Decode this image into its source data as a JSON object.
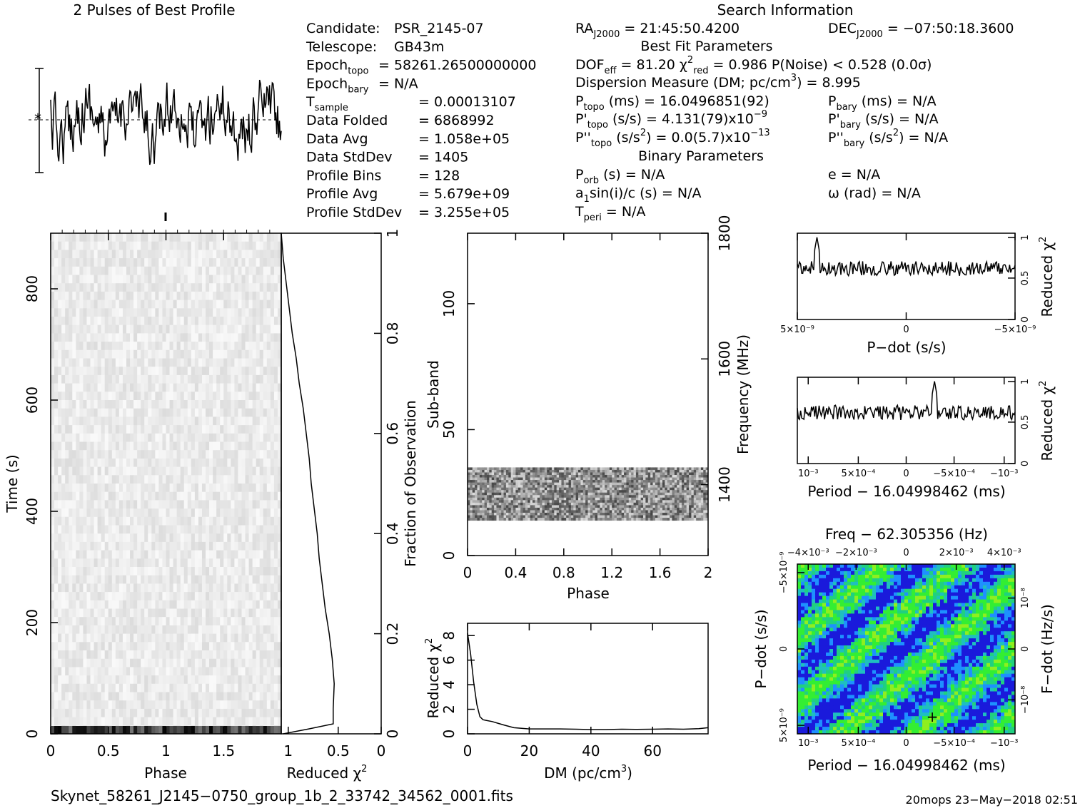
{
  "header": {
    "profile_title": "2 Pulses of Best Profile",
    "search_title": "Search Information",
    "best_fit_title": "Best Fit Parameters",
    "binary_title": "Binary Parameters"
  },
  "info_left": [
    {
      "name": "Candidate:",
      "sub": "",
      "value": "PSR_2145-07"
    },
    {
      "name": "Telescope:",
      "sub": "",
      "value": "GB43m"
    },
    {
      "name": "Epoch",
      "sub": "topo",
      "value": "= 58261.26500000000"
    },
    {
      "name": "Epoch",
      "sub": "bary",
      "value": "= N/A"
    },
    {
      "name": "T",
      "sub": "sample",
      "value": "=   0.00013107"
    },
    {
      "name": "Data Folded",
      "sub": "",
      "value": "=   6868992"
    },
    {
      "name": "Data Avg",
      "sub": "",
      "value": "=   1.058e+05"
    },
    {
      "name": "Data StdDev",
      "sub": "",
      "value": "=   1405"
    },
    {
      "name": "Profile Bins",
      "sub": "",
      "value": "=   128"
    },
    {
      "name": "Profile Avg",
      "sub": "",
      "value": "=   5.679e+09"
    },
    {
      "name": "Profile StdDev",
      "sub": "",
      "value": "=   3.255e+05"
    }
  ],
  "info_right": {
    "ra": "= 21:45:50.4200",
    "ra_name": "RA",
    "ra_sub": "J2000",
    "dec": "= −07:50:18.3600",
    "dec_name": "DEC",
    "dec_sub": "J2000",
    "dof_line": "DOF",
    "dof_sub": "eff",
    "dof_value": "= 81.20",
    "chi_name": "χ",
    "chi_sup": "2",
    "chi_sub": "red",
    "chi_value": "= 0.986",
    "pnoise": "P(Noise) < 0.528  (0.0σ)",
    "dm_line": "Dispersion Measure (DM; pc/cm",
    "dm_sup": "3",
    "dm_value": ") = 8.995",
    "ptopo_name": "P",
    "ptopo_sub": "topo",
    "ptopo_value": "(ms) =  16.0496851(92)",
    "pbary_name": "P",
    "pbary_sub": "bary",
    "pbary_value": "(ms) = N/A",
    "pdtopo_name": "P'",
    "pdtopo_sub": "topo",
    "pdtopo_value": "(s/s) =  4.131(79)x10",
    "pdtopo_exp": "−9",
    "pdbary_name": "P'",
    "pdbary_sub": "bary",
    "pdbary_value": "(s/s) = N/A",
    "pddtopo_name": "P''",
    "pddtopo_sub": "topo",
    "pddtopo_value": "(s/s",
    "pddtopo_sup": "2",
    "pddtopo_value2": ") = 0.0(5.7)x10",
    "pddtopo_exp": "−13",
    "pddbary_name": "P''",
    "pddbary_sub": "bary",
    "pddbary_value": "(s/s",
    "pddbary_sup": "2",
    "pddbary_value2": ") = N/A",
    "porb_name": "P",
    "porb_sub": "orb",
    "porb_value": "(s) = N/A",
    "e_line": "e = N/A",
    "a1_name": "a",
    "a1_sub": "1",
    "a1_value": "sin(i)/c (s) = N/A",
    "omega_line": "ω (rad) = N/A",
    "tperi_name": "T",
    "tperi_sub": "peri",
    "tperi_value": "= N/A"
  },
  "footer": {
    "filename": "Skynet_58261_J2145−0750_group_1b_2_33742_34562_0001.fits",
    "stamp": "20mops 23−May−2018 02:51"
  },
  "chart_data": [
    {
      "id": "time-phase",
      "type": "heatmap",
      "xlabel": "Phase",
      "ylabel": "Time (s)",
      "xlim": [
        0,
        2
      ],
      "ylim": [
        0,
        900
      ],
      "x_ticks": [
        "0",
        "0.5",
        "1",
        "1.5"
      ],
      "y_ticks": [
        "0",
        "200",
        "400",
        "600",
        "800"
      ],
      "colormap": "grayscale"
    },
    {
      "id": "reduced-chi2-vs-time",
      "type": "line",
      "xlabel": "Reduced χ",
      "xlabel_sup": "2",
      "ylabel": "Fraction of Observation",
      "x_ticks": [
        "1",
        "0.5",
        "0"
      ],
      "y_ticks": [
        "0",
        "0.2",
        "0.4",
        "0.6",
        "0.8",
        "1"
      ],
      "xlim": [
        1,
        0
      ],
      "ylim": [
        0,
        1
      ],
      "points": [
        [
          0.98,
          0
        ],
        [
          0.72,
          0.01
        ],
        [
          0.48,
          0.02
        ],
        [
          0.48,
          0.05
        ],
        [
          0.47,
          0.1
        ],
        [
          0.49,
          0.15
        ],
        [
          0.52,
          0.2
        ],
        [
          0.56,
          0.25
        ],
        [
          0.59,
          0.3
        ],
        [
          0.62,
          0.35
        ],
        [
          0.64,
          0.4
        ],
        [
          0.67,
          0.45
        ],
        [
          0.7,
          0.5
        ],
        [
          0.72,
          0.55
        ],
        [
          0.75,
          0.6
        ],
        [
          0.78,
          0.65
        ],
        [
          0.82,
          0.7
        ],
        [
          0.85,
          0.75
        ],
        [
          0.89,
          0.8
        ],
        [
          0.92,
          0.85
        ],
        [
          0.95,
          0.9
        ],
        [
          0.98,
          0.95
        ],
        [
          1.0,
          1.0
        ]
      ]
    },
    {
      "id": "subband-phase",
      "type": "heatmap",
      "xlabel": "Phase",
      "ylabel": "Sub-band",
      "ylabel_right": "Frequency (MHz)",
      "xlim": [
        0,
        2
      ],
      "ylim": [
        0,
        128
      ],
      "x_ticks": [
        "0",
        "0.4",
        "0.8",
        "1.2",
        "1.6",
        "2"
      ],
      "y_ticks": [
        "0",
        "50",
        "100"
      ],
      "y_right_ticks": [
        "1400",
        "1600",
        "1800"
      ],
      "band_range": [
        14,
        35
      ],
      "colormap": "grayscale"
    },
    {
      "id": "dm-curve",
      "type": "line",
      "xlabel": "DM (pc/cm",
      "xlabel_sup": "3",
      "xlabel_end": ")",
      "ylabel": "Reduced χ",
      "ylabel_sup": "2",
      "xlim": [
        0,
        78
      ],
      "ylim": [
        0,
        9
      ],
      "x_ticks": [
        "0",
        "20",
        "40",
        "60"
      ],
      "y_ticks": [
        "0",
        "2",
        "4",
        "6",
        "8"
      ],
      "points": [
        [
          0,
          8.2
        ],
        [
          1,
          6.5
        ],
        [
          2,
          4.2
        ],
        [
          3,
          2.4
        ],
        [
          4,
          1.4
        ],
        [
          5,
          1.15
        ],
        [
          6,
          1.1
        ],
        [
          8,
          1.0
        ],
        [
          10,
          0.85
        ],
        [
          12,
          0.7
        ],
        [
          15,
          0.5
        ],
        [
          20,
          0.4
        ],
        [
          25,
          0.4
        ],
        [
          30,
          0.4
        ],
        [
          35,
          0.38
        ],
        [
          40,
          0.35
        ],
        [
          45,
          0.35
        ],
        [
          50,
          0.38
        ],
        [
          55,
          0.36
        ],
        [
          60,
          0.38
        ],
        [
          65,
          0.4
        ],
        [
          70,
          0.38
        ],
        [
          75,
          0.42
        ],
        [
          78,
          0.5
        ]
      ]
    },
    {
      "id": "pdot-curve",
      "type": "line",
      "xlabel": "P−dot (s/s)",
      "ylabel": "Reduced χ",
      "ylabel_sup": "2",
      "x_ticks": [
        "5×10⁻⁹",
        "0",
        "−5×10⁻⁹"
      ],
      "y_ticks": [
        "0",
        "0.5",
        "1"
      ],
      "ylim": [
        0,
        1.05
      ],
      "peak_x_frac": 0.09,
      "peak_y": 1.0
    },
    {
      "id": "period-curve",
      "type": "line",
      "xlabel": "Period − 16.04998462 (ms)",
      "ylabel": "Reduced χ",
      "ylabel_sup": "2",
      "x_ticks": [
        "10⁻³",
        "5×10⁻⁴",
        "0",
        "−5×10⁻⁴",
        "−10⁻³"
      ],
      "y_ticks": [
        "0",
        "0.5",
        "1"
      ],
      "ylim": [
        0,
        1.05
      ],
      "peak_x_frac": 0.63,
      "peak_y": 1.0
    },
    {
      "id": "p-pdot-plane",
      "type": "heatmap",
      "title": "Freq − 62.305356 (Hz)",
      "xlabel": "Period − 16.04998462 (ms)",
      "ylabel": "P−dot (s/s)",
      "ylabel_right": "F−dot (Hz/s)",
      "x_ticks": [
        "10⁻³",
        "5×10⁻⁴",
        "0",
        "−5×10⁻⁴",
        "−10⁻³"
      ],
      "top_ticks": [
        "−4×10⁻³",
        "−2×10⁻³",
        "0",
        "2×10⁻³",
        "4×10⁻³"
      ],
      "y_ticks": [
        "−5×10⁻⁹",
        "0",
        "5×10⁻⁹"
      ],
      "y_right_ticks": [
        "10⁻⁸",
        "0",
        "−10⁻⁸"
      ],
      "best_x_frac": 0.62,
      "best_y_frac": 0.9,
      "colors": [
        "#1a1adb",
        "#1e90ff",
        "#1fbfbf",
        "#20d080",
        "#33ee33",
        "#8fef1f"
      ]
    }
  ]
}
